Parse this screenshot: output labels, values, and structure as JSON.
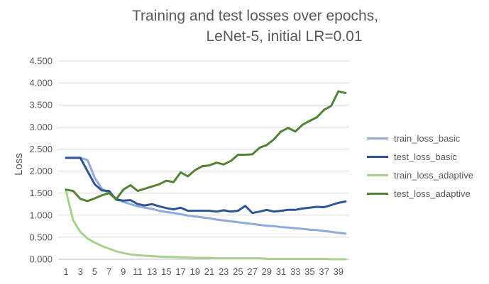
{
  "chart_data": {
    "type": "line",
    "title_line1": "Training and test losses over epochs,",
    "title_line2": "LeNet-5, initial LR=0.01",
    "ylabel": "Loss",
    "xlabel": "",
    "ylim": [
      0,
      4.5
    ],
    "y_ticks": [
      "0.000",
      "0.500",
      "1.000",
      "1.500",
      "2.000",
      "2.500",
      "3.000",
      "3.500",
      "4.000",
      "4.500"
    ],
    "y_tick_values": [
      0,
      0.5,
      1,
      1.5,
      2,
      2.5,
      3,
      3.5,
      4,
      4.5
    ],
    "x": [
      1,
      2,
      3,
      4,
      5,
      6,
      7,
      8,
      9,
      10,
      11,
      12,
      13,
      14,
      15,
      16,
      17,
      18,
      19,
      20,
      21,
      22,
      23,
      24,
      25,
      26,
      27,
      28,
      29,
      30,
      31,
      32,
      33,
      34,
      35,
      36,
      37,
      38,
      39,
      40
    ],
    "x_tick_labels": [
      "1",
      "3",
      "5",
      "7",
      "9",
      "11",
      "13",
      "15",
      "17",
      "19",
      "21",
      "23",
      "25",
      "27",
      "29",
      "31",
      "33",
      "35",
      "37",
      "39"
    ],
    "grid": "horizontal",
    "legend_position": "right",
    "series": [
      {
        "name": "train_loss_basic",
        "color": "#8faadc",
        "values": [
          2.3,
          2.3,
          2.3,
          2.25,
          1.85,
          1.6,
          1.5,
          1.38,
          1.3,
          1.25,
          1.2,
          1.17,
          1.14,
          1.1,
          1.07,
          1.05,
          1.02,
          0.99,
          0.97,
          0.95,
          0.93,
          0.9,
          0.88,
          0.86,
          0.84,
          0.82,
          0.8,
          0.78,
          0.76,
          0.75,
          0.73,
          0.72,
          0.7,
          0.69,
          0.67,
          0.66,
          0.64,
          0.62,
          0.6,
          0.58
        ]
      },
      {
        "name": "test_loss_basic",
        "color": "#2f5597",
        "values": [
          2.3,
          2.3,
          2.3,
          2.0,
          1.7,
          1.56,
          1.55,
          1.35,
          1.33,
          1.34,
          1.25,
          1.22,
          1.25,
          1.2,
          1.16,
          1.13,
          1.17,
          1.1,
          1.1,
          1.1,
          1.1,
          1.08,
          1.11,
          1.08,
          1.1,
          1.21,
          1.05,
          1.08,
          1.12,
          1.08,
          1.1,
          1.12,
          1.12,
          1.15,
          1.17,
          1.19,
          1.18,
          1.23,
          1.28,
          1.31
        ]
      },
      {
        "name": "train_loss_adaptive",
        "color": "#a9d18e",
        "values": [
          1.55,
          0.88,
          0.62,
          0.47,
          0.38,
          0.3,
          0.24,
          0.18,
          0.14,
          0.11,
          0.09,
          0.08,
          0.07,
          0.06,
          0.05,
          0.05,
          0.04,
          0.04,
          0.03,
          0.03,
          0.03,
          0.02,
          0.02,
          0.02,
          0.02,
          0.02,
          0.02,
          0.02,
          0.01,
          0.01,
          0.01,
          0.01,
          0.01,
          0.01,
          0.01,
          0.01,
          0.01,
          0.0,
          0.0,
          0.0
        ]
      },
      {
        "name": "test_loss_adaptive",
        "color": "#548235",
        "values": [
          1.58,
          1.55,
          1.37,
          1.32,
          1.38,
          1.45,
          1.5,
          1.36,
          1.58,
          1.68,
          1.55,
          1.6,
          1.65,
          1.7,
          1.78,
          1.75,
          1.97,
          1.88,
          2.02,
          2.11,
          2.13,
          2.19,
          2.15,
          2.23,
          2.37,
          2.37,
          2.38,
          2.53,
          2.59,
          2.72,
          2.9,
          2.98,
          2.9,
          3.05,
          3.14,
          3.22,
          3.39,
          3.48,
          3.81,
          3.77
        ]
      }
    ]
  }
}
